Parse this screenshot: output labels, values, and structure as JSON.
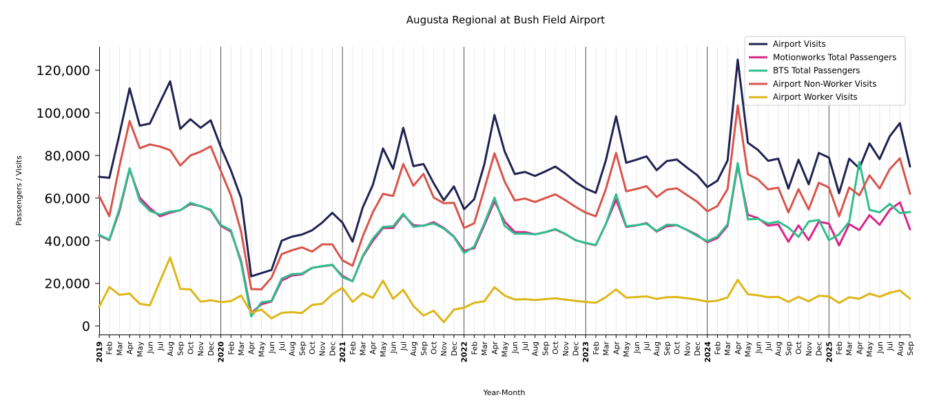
{
  "chart_data": {
    "type": "line",
    "title": "Augusta Regional at Bush Field Airport",
    "xlabel": "Year-Month",
    "ylabel": "Passengers / Visits",
    "ylim": [
      -4000,
      131000
    ],
    "yticks": [
      0,
      20000,
      40000,
      60000,
      80000,
      100000,
      120000
    ],
    "ytick_labels": [
      "0",
      "20,000",
      "40,000",
      "60,000",
      "80,000",
      "100,000",
      "120,000"
    ],
    "start": "2019-01",
    "month_labels": [
      "Jan",
      "Feb",
      "Mar",
      "Apr",
      "May",
      "Jun",
      "Jul",
      "Aug",
      "Sep",
      "Oct",
      "Nov",
      "Dec"
    ],
    "year_labels": [
      "2019",
      "2020",
      "2021",
      "2022",
      "2023",
      "2024",
      "2025"
    ],
    "legend_position": "top-right",
    "grid": "vertical-monthly",
    "series": [
      {
        "name": "Airport Visits",
        "color": "#1f2151",
        "values": [
          70000,
          69500,
          90000,
          111500,
          94000,
          95000,
          105000,
          114800,
          92500,
          97000,
          93000,
          96500,
          84000,
          73000,
          60000,
          23300,
          24800,
          26300,
          40000,
          41900,
          42900,
          44900,
          48500,
          53100,
          48500,
          39600,
          55600,
          66200,
          83300,
          73700,
          93000,
          75000,
          76000,
          67000,
          59000,
          65500,
          54800,
          59500,
          75900,
          99000,
          82000,
          71300,
          72300,
          70400,
          72500,
          74800,
          71500,
          67600,
          64500,
          62500,
          77900,
          98400,
          76600,
          78000,
          79600,
          73100,
          77400,
          78100,
          74300,
          70800,
          65200,
          68200,
          77700,
          125000,
          86000,
          82600,
          77500,
          78500,
          64500,
          78000,
          66500,
          81200,
          79000,
          62300,
          78500,
          74000,
          85700,
          78300,
          89000,
          95200,
          74800
        ],
        "range_end": "2025-09"
      },
      {
        "name": "Motionworks Total Passengers",
        "color": "#d62589",
        "values": [
          42500,
          40300,
          54000,
          73500,
          60200,
          55300,
          51500,
          53200,
          54300,
          57200,
          56300,
          54300,
          47000,
          44300,
          30500,
          6000,
          10200,
          11500,
          21300,
          23700,
          24200,
          27300,
          28000,
          28600,
          23500,
          21000,
          32500,
          40000,
          46000,
          46000,
          52200,
          47300,
          47000,
          48700,
          46000,
          42000,
          35300,
          36500,
          47300,
          58500,
          49000,
          44100,
          44100,
          43000,
          44000,
          45300,
          43100,
          40300,
          38900,
          37900,
          48000,
          59300,
          46500,
          47200,
          48300,
          44300,
          46800,
          47300,
          45100,
          42700,
          39300,
          41300,
          47000,
          75500,
          52200,
          50600,
          47100,
          47700,
          39500,
          47200,
          40300,
          49000,
          48000,
          37800,
          47800,
          45000,
          52000,
          47500,
          54500,
          58000,
          45300
        ]
      },
      {
        "name": "BTS Total Passengers",
        "color": "#2dbf8c",
        "values": [
          42800,
          40500,
          55000,
          74000,
          58800,
          54000,
          52300,
          53700,
          54300,
          57800,
          56200,
          54600,
          47400,
          44900,
          29500,
          4500,
          11100,
          11800,
          22200,
          24300,
          24600,
          27300,
          28100,
          28800,
          22900,
          21000,
          32800,
          41000,
          46500,
          46800,
          52600,
          46500,
          47200,
          48100,
          45700,
          41800,
          34200,
          37300,
          48200,
          60200,
          47000,
          43300,
          43400,
          43000,
          44000,
          45500,
          43200,
          40200,
          39000,
          38000,
          48000,
          61800,
          46800,
          47300,
          48000,
          44600,
          47500,
          47400,
          45000,
          42300,
          39800,
          42000,
          47700,
          76500,
          50000,
          50300,
          48100,
          49000,
          46200,
          41800,
          49000,
          49800,
          40300,
          43000,
          48900,
          77000,
          54500,
          53300,
          57300,
          53000,
          53500
        ]
      },
      {
        "name": "Airport Non-Worker Visits",
        "color": "#d9534a",
        "values": [
          61000,
          51500,
          75000,
          96200,
          83400,
          85200,
          84200,
          82500,
          75300,
          80000,
          81800,
          84300,
          72700,
          61300,
          44300,
          17300,
          17200,
          22700,
          33700,
          35500,
          36900,
          34900,
          38300,
          38300,
          30800,
          28300,
          42000,
          53400,
          62000,
          61000,
          76000,
          65800,
          71400,
          60300,
          57600,
          57800,
          46000,
          48200,
          64300,
          81000,
          67800,
          58900,
          59800,
          58200,
          60000,
          61800,
          59000,
          55900,
          53200,
          51500,
          64400,
          81200,
          63200,
          64300,
          65600,
          60500,
          64000,
          64600,
          61400,
          58300,
          53800,
          56300,
          64300,
          103500,
          71200,
          68800,
          64100,
          64900,
          53300,
          64200,
          54700,
          67200,
          65000,
          51500,
          65000,
          61300,
          70700,
          64500,
          73600,
          78700,
          62000
        ]
      },
      {
        "name": "Airport Worker Visits",
        "color": "#ddb617",
        "values": [
          9000,
          18300,
          14600,
          15200,
          10400,
          9700,
          21000,
          32200,
          17400,
          17200,
          11400,
          12100,
          11200,
          11700,
          14300,
          6200,
          7700,
          3600,
          6200,
          6500,
          6100,
          9900,
          10400,
          14900,
          17900,
          11300,
          15400,
          13200,
          21300,
          12800,
          17000,
          9400,
          4900,
          7200,
          1800,
          7700,
          8600,
          10900,
          11600,
          18200,
          14300,
          12400,
          12600,
          12200,
          12600,
          13000,
          12400,
          11800,
          11300,
          10900,
          13600,
          17200,
          13300,
          13600,
          13900,
          12700,
          13500,
          13600,
          13000,
          12400,
          11400,
          11900,
          13400,
          21700,
          14900,
          14400,
          13500,
          13700,
          11300,
          13700,
          11600,
          14200,
          13900,
          10800,
          13500,
          12800,
          15200,
          13700,
          15600,
          16700,
          12800
        ]
      }
    ]
  }
}
